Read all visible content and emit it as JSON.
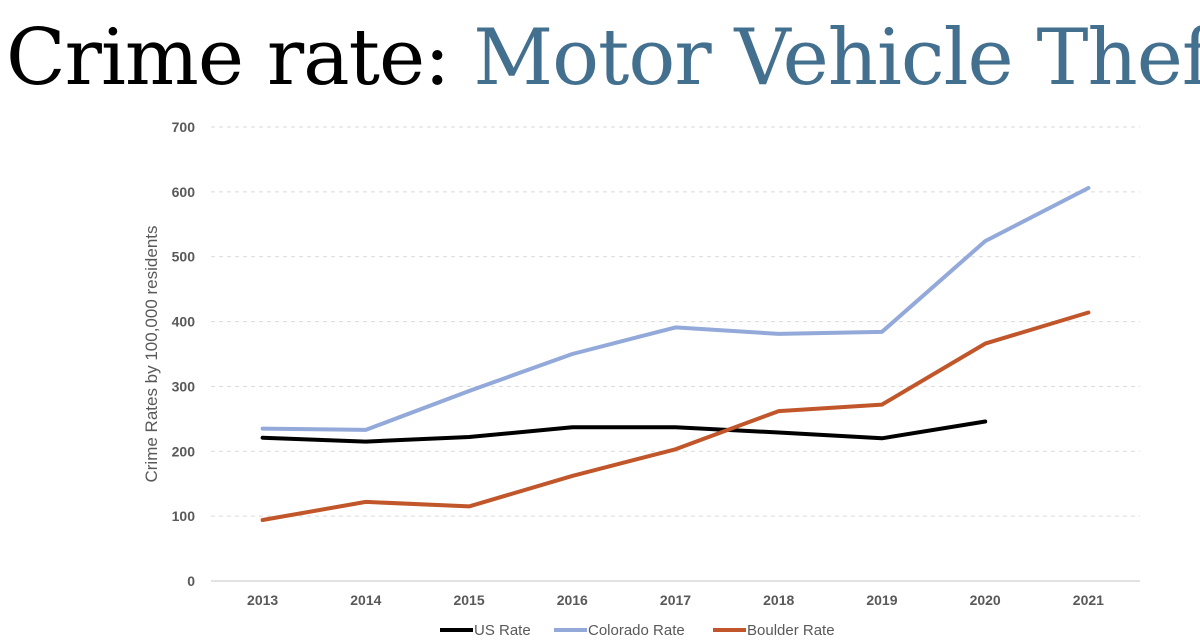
{
  "title": {
    "part1": "Crime rate: ",
    "part2": "Motor Vehicle Theft",
    "color1": "#000000",
    "color2": "#43708f"
  },
  "chart_data": {
    "type": "line",
    "x": [
      "2013",
      "2014",
      "2015",
      "2016",
      "2017",
      "2018",
      "2019",
      "2020",
      "2021"
    ],
    "ylabel": "Crime Rates by 100,000 residents",
    "xlabel": "",
    "ylim": [
      0,
      700
    ],
    "yticks": [
      0,
      100,
      200,
      300,
      400,
      500,
      600,
      700
    ],
    "grid": "horizontal dashed",
    "legend_position": "bottom",
    "series": [
      {
        "name": "US Rate",
        "color": "#000000",
        "values": [
          221,
          215,
          222,
          237,
          237,
          229,
          220,
          246,
          null
        ]
      },
      {
        "name": "Colorado Rate",
        "color": "#92a9d9",
        "values": [
          235,
          233,
          293,
          350,
          391,
          381,
          384,
          524,
          606
        ]
      },
      {
        "name": "Boulder Rate",
        "color": "#c0562a",
        "values": [
          94,
          122,
          115,
          162,
          203,
          262,
          272,
          366,
          414
        ]
      }
    ]
  }
}
